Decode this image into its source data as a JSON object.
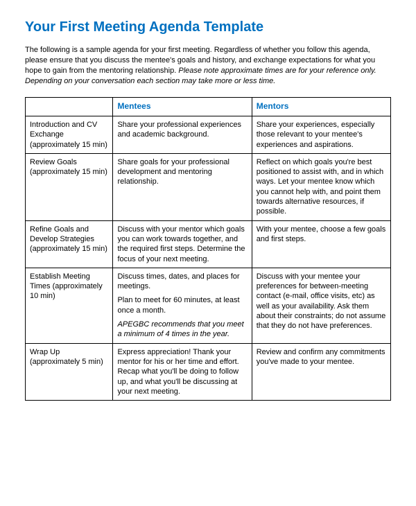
{
  "title": "Your First Meeting Agenda Template",
  "intro": {
    "normal": "The following is a sample agenda for your first meeting. Regardless of whether you follow this agenda, please ensure that you discuss the mentee's goals and history, and exchange expectations for what you hope to gain from the mentoring relationship. ",
    "italic": "Please note approximate times are for your reference only. Depending on your conversation each section may take more or less time."
  },
  "headers": {
    "col1": "",
    "col2": "Mentees",
    "col3": "Mentors"
  },
  "rows": [
    {
      "topic": "Introduction and CV Exchange (approximately 15 min)",
      "mentees": "Share your professional experiences and academic background.",
      "mentors": "Share your experiences, especially those relevant to your mentee's experiences and aspirations."
    },
    {
      "topic": "Review Goals (approximately 15 min)",
      "mentees": "Share goals for your professional development and mentoring relationship.",
      "mentors": "Reflect on which goals you're best positioned to assist with, and in which ways. Let your mentee know which you cannot help with, and point them towards alternative resources, if possible."
    },
    {
      "topic": "Refine Goals and Develop Strategies (approximately 15 min)",
      "mentees": "Discuss with your mentor which goals you can work towards together, and the required first steps. Determine the focus of your next meeting.",
      "mentors": "With your mentee, choose a few goals and first steps."
    },
    {
      "topic": "Establish Meeting Times (approximately 10 min)",
      "mentees": "Discuss times, dates, and places for meetings.",
      "mentees_p2": "Plan to meet for 60 minutes, at least once a month.",
      "mentees_italic": "APEGBC recommends that you meet a minimum of 4 times in the year.",
      "mentors": "Discuss with your mentee your preferences for between-meeting contact (e-mail, office visits, etc) as well as your availability. Ask them about their constraints; do not assume that they do not have preferences."
    },
    {
      "topic": "Wrap Up (approximately 5 min)",
      "mentees": "Express appreciation! Thank your mentor for his or her time and effort. Recap what you'll be doing to follow up, and what you'll be discussing at your next meeting.",
      "mentors": "Review and confirm any commitments you've made to your mentee."
    }
  ]
}
